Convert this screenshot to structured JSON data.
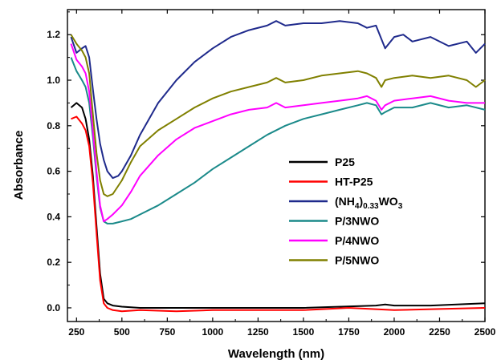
{
  "chart_data": {
    "type": "line",
    "title": "",
    "xlabel": "Wavelength (nm)",
    "ylabel": "Absorbance",
    "xlim": [
      200,
      2500
    ],
    "ylim": [
      -0.06,
      1.31
    ],
    "xticks": [
      250,
      500,
      750,
      1000,
      1250,
      1500,
      1750,
      2000,
      2250,
      2500
    ],
    "xtick_labels": [
      "250",
      "500",
      "750",
      "1000",
      "1250",
      "1500",
      "1750",
      "2000",
      "2250",
      "2500"
    ],
    "yticks": [
      0.0,
      0.2,
      0.4,
      0.6,
      0.8,
      1.0,
      1.2
    ],
    "ytick_labels": [
      "0.0",
      "0.2",
      "0.4",
      "0.6",
      "0.8",
      "1.0",
      "1.2"
    ],
    "grid": false,
    "legend_position": "right-center",
    "series": [
      {
        "name": "P25",
        "color": "#000000",
        "x": [
          220,
          250,
          280,
          300,
          320,
          340,
          360,
          380,
          400,
          420,
          450,
          500,
          600,
          800,
          1000,
          1500,
          1900,
          1950,
          2000,
          2200,
          2500
        ],
        "y": [
          0.88,
          0.9,
          0.88,
          0.83,
          0.74,
          0.58,
          0.36,
          0.15,
          0.04,
          0.02,
          0.01,
          0.005,
          0.0,
          0.0,
          0.0,
          0.0,
          0.01,
          0.015,
          0.01,
          0.01,
          0.02
        ]
      },
      {
        "name": "HT-P25",
        "color": "#ff0000",
        "x": [
          220,
          250,
          280,
          300,
          320,
          340,
          360,
          380,
          400,
          420,
          450,
          500,
          600,
          800,
          1000,
          1500,
          1750,
          2000,
          2250,
          2500
        ],
        "y": [
          0.83,
          0.84,
          0.81,
          0.78,
          0.71,
          0.55,
          0.33,
          0.12,
          0.02,
          0.0,
          -0.01,
          -0.015,
          -0.01,
          -0.015,
          -0.01,
          -0.01,
          0.0,
          -0.01,
          -0.005,
          0.0
        ]
      },
      {
        "name": "(NH4)0.33WO3",
        "color": "#1f2a8c",
        "x": [
          220,
          250,
          280,
          300,
          320,
          340,
          360,
          380,
          400,
          420,
          450,
          480,
          500,
          550,
          600,
          700,
          800,
          900,
          1000,
          1100,
          1200,
          1300,
          1350,
          1400,
          1500,
          1600,
          1700,
          1800,
          1850,
          1900,
          1930,
          1950,
          2000,
          2050,
          2100,
          2200,
          2300,
          2400,
          2450,
          2500
        ],
        "y": [
          1.19,
          1.12,
          1.14,
          1.15,
          1.1,
          0.96,
          0.83,
          0.72,
          0.65,
          0.6,
          0.57,
          0.58,
          0.6,
          0.67,
          0.76,
          0.9,
          1.0,
          1.08,
          1.14,
          1.19,
          1.22,
          1.24,
          1.26,
          1.24,
          1.25,
          1.25,
          1.26,
          1.25,
          1.23,
          1.24,
          1.18,
          1.14,
          1.19,
          1.2,
          1.17,
          1.19,
          1.15,
          1.17,
          1.12,
          1.16
        ]
      },
      {
        "name": "P/3NWO",
        "color": "#1b8a8a",
        "x": [
          220,
          250,
          280,
          300,
          320,
          340,
          360,
          380,
          400,
          420,
          450,
          500,
          550,
          600,
          700,
          800,
          900,
          1000,
          1100,
          1200,
          1300,
          1400,
          1500,
          1600,
          1700,
          1800,
          1850,
          1900,
          1930,
          1950,
          2000,
          2100,
          2200,
          2300,
          2400,
          2500
        ],
        "y": [
          1.1,
          1.04,
          1.0,
          0.97,
          0.9,
          0.75,
          0.58,
          0.44,
          0.38,
          0.37,
          0.37,
          0.38,
          0.39,
          0.41,
          0.45,
          0.5,
          0.55,
          0.61,
          0.66,
          0.71,
          0.76,
          0.8,
          0.83,
          0.85,
          0.87,
          0.89,
          0.9,
          0.89,
          0.85,
          0.86,
          0.88,
          0.88,
          0.9,
          0.88,
          0.89,
          0.87
        ]
      },
      {
        "name": "P/4NWO",
        "color": "#ff00ff",
        "x": [
          220,
          250,
          280,
          300,
          320,
          340,
          360,
          380,
          400,
          420,
          450,
          500,
          550,
          600,
          700,
          800,
          900,
          1000,
          1100,
          1200,
          1300,
          1350,
          1400,
          1500,
          1600,
          1700,
          1800,
          1850,
          1900,
          1930,
          1950,
          2000,
          2100,
          2200,
          2300,
          2400,
          2500
        ],
        "y": [
          1.16,
          1.09,
          1.06,
          1.03,
          0.95,
          0.78,
          0.6,
          0.45,
          0.38,
          0.39,
          0.41,
          0.45,
          0.51,
          0.58,
          0.67,
          0.74,
          0.79,
          0.82,
          0.85,
          0.87,
          0.88,
          0.9,
          0.88,
          0.89,
          0.9,
          0.91,
          0.92,
          0.93,
          0.91,
          0.87,
          0.89,
          0.91,
          0.92,
          0.93,
          0.91,
          0.9,
          0.9
        ]
      },
      {
        "name": "P/5NWO",
        "color": "#808000",
        "x": [
          220,
          250,
          280,
          300,
          320,
          340,
          360,
          380,
          400,
          420,
          450,
          500,
          550,
          600,
          700,
          800,
          900,
          1000,
          1100,
          1200,
          1300,
          1350,
          1400,
          1500,
          1600,
          1700,
          1800,
          1850,
          1900,
          1930,
          1950,
          2000,
          2100,
          2200,
          2300,
          2400,
          2450,
          2500
        ],
        "y": [
          1.2,
          1.16,
          1.13,
          1.1,
          1.03,
          0.85,
          0.68,
          0.56,
          0.5,
          0.49,
          0.5,
          0.56,
          0.64,
          0.71,
          0.78,
          0.83,
          0.88,
          0.92,
          0.95,
          0.97,
          0.99,
          1.01,
          0.99,
          1.0,
          1.02,
          1.03,
          1.04,
          1.03,
          1.01,
          0.97,
          1.0,
          1.01,
          1.02,
          1.01,
          1.02,
          1.0,
          0.97,
          1.0
        ]
      }
    ]
  }
}
